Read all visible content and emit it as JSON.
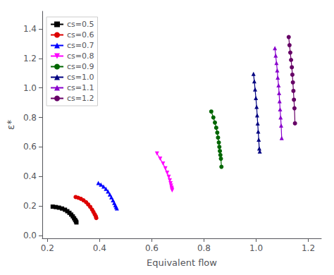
{
  "chart_data": {
    "type": "line",
    "xlabel": "Equivalent flow",
    "ylabel": "ε*",
    "xlim": [
      0.18,
      1.25
    ],
    "ylim": [
      -0.02,
      1.52
    ],
    "xticks": [
      0.2,
      0.4,
      0.6,
      0.8,
      {
        "value": 1.0,
        "label": "1.0"
      },
      1.2
    ],
    "yticks": [
      {
        "value": 0.0,
        "label": "0.0"
      },
      0.2,
      0.4,
      0.6,
      0.8,
      {
        "value": 1.0,
        "label": "1.0"
      },
      1.2,
      1.4
    ],
    "grid": false,
    "legend": "upper left",
    "series": [
      {
        "name": "cs=0.5",
        "color": "black",
        "marker": "square",
        "x": [
          0.22,
          0.232,
          0.244,
          0.256,
          0.267,
          0.276,
          0.284,
          0.291,
          0.297,
          0.302,
          0.306,
          0.309,
          0.311
        ],
        "values": [
          0.195,
          0.192,
          0.188,
          0.182,
          0.174,
          0.164,
          0.153,
          0.141,
          0.129,
          0.116,
          0.105,
          0.096,
          0.088
        ]
      },
      {
        "name": "cs=0.6",
        "color": "#dd0000",
        "marker": "circle",
        "x": [
          0.308,
          0.318,
          0.328,
          0.338,
          0.348,
          0.356,
          0.364,
          0.371,
          0.376,
          0.381,
          0.385,
          0.387
        ],
        "values": [
          0.26,
          0.255,
          0.248,
          0.238,
          0.225,
          0.21,
          0.193,
          0.175,
          0.159,
          0.143,
          0.13,
          0.118
        ]
      },
      {
        "name": "cs=0.7",
        "color": "blue",
        "marker": "triangle-up",
        "x": [
          0.395,
          0.405,
          0.415,
          0.424,
          0.432,
          0.439,
          0.445,
          0.451,
          0.456,
          0.46,
          0.463,
          0.466
        ],
        "values": [
          0.355,
          0.345,
          0.332,
          0.316,
          0.298,
          0.278,
          0.258,
          0.238,
          0.22,
          0.205,
          0.193,
          0.183
        ]
      },
      {
        "name": "cs=0.8",
        "color": "#ff00ff",
        "marker": "triangle-down",
        "x": [
          0.62,
          0.632,
          0.643,
          0.652,
          0.659,
          0.665,
          0.669,
          0.672,
          0.674,
          0.676,
          0.677,
          0.678
        ],
        "values": [
          0.555,
          0.52,
          0.487,
          0.455,
          0.425,
          0.397,
          0.373,
          0.353,
          0.338,
          0.323,
          0.315,
          0.305
        ]
      },
      {
        "name": "cs=0.9",
        "color": "#006600",
        "marker": "circle",
        "x": [
          0.828,
          0.836,
          0.842,
          0.847,
          0.851,
          0.854,
          0.857,
          0.859,
          0.861,
          0.863,
          0.865,
          0.867
        ],
        "values": [
          0.84,
          0.8,
          0.765,
          0.73,
          0.697,
          0.663,
          0.63,
          0.6,
          0.572,
          0.545,
          0.52,
          0.465
        ]
      },
      {
        "name": "cs=1.0",
        "color": "#000080",
        "marker": "triangle-up",
        "x": [
          0.99,
          0.993,
          0.996,
          0.999,
          1.002,
          1.004,
          1.006,
          1.008,
          1.01,
          1.012,
          1.014
        ],
        "values": [
          1.095,
          1.045,
          0.99,
          0.932,
          0.872,
          0.815,
          0.76,
          0.705,
          0.65,
          0.59,
          0.57
        ]
      },
      {
        "name": "cs=1.1",
        "color": "#8800cc",
        "marker": "triangle-up",
        "x": [
          1.072,
          1.075,
          1.078,
          1.081,
          1.083,
          1.086,
          1.088,
          1.09,
          1.092,
          1.094,
          1.096,
          1.098
        ],
        "values": [
          1.27,
          1.22,
          1.17,
          1.12,
          1.07,
          1.018,
          0.965,
          0.91,
          0.855,
          0.8,
          0.745,
          0.66
        ]
      },
      {
        "name": "cs=1.2",
        "color": "#660066",
        "marker": "circle",
        "x": [
          1.125,
          1.128,
          1.131,
          1.134,
          1.137,
          1.139,
          1.141,
          1.143,
          1.145,
          1.147,
          1.149
        ],
        "values": [
          1.345,
          1.29,
          1.24,
          1.19,
          1.14,
          1.09,
          1.038,
          0.98,
          0.92,
          0.862,
          0.76
        ]
      }
    ]
  }
}
